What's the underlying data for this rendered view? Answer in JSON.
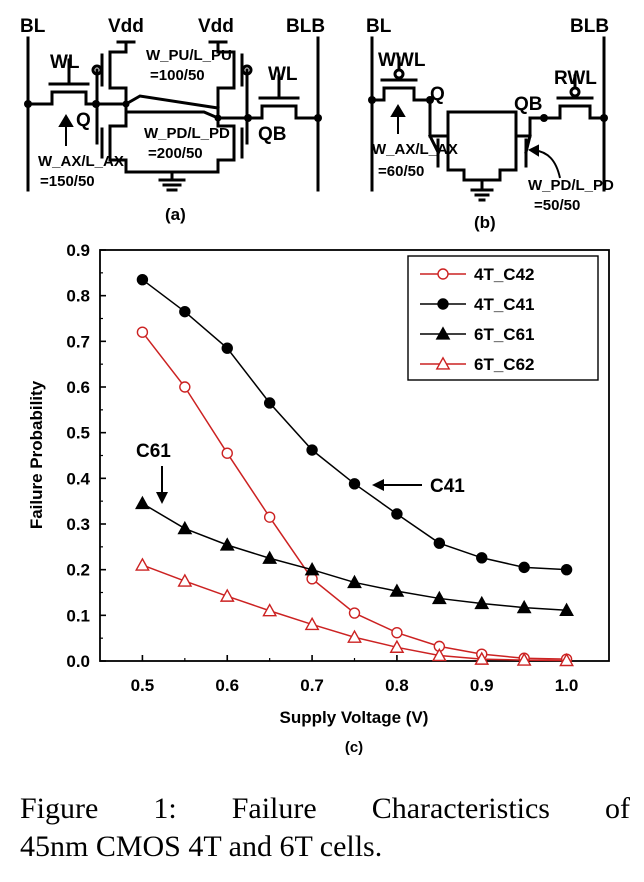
{
  "circuit_a": {
    "label": "(a)",
    "bl": "BL",
    "blb": "BLB",
    "wl_left": "WL",
    "wl_right": "WL",
    "vdd_left": "Vdd",
    "vdd_right": "Vdd",
    "q": "Q",
    "qb": "QB",
    "pu_ratio_name": "W_PU/L_PU",
    "pu_ratio_value": "=100/50",
    "pd_ratio_name": "W_PD/L_PD",
    "pd_ratio_value": "=200/50",
    "ax_ratio_name": "W_AX/L_AX",
    "ax_ratio_value": "=150/50"
  },
  "circuit_b": {
    "label": "(b)",
    "bl": "BL",
    "blb": "BLB",
    "wwl": "WWL",
    "rwl": "RWL",
    "q": "Q",
    "qb": "QB",
    "ax_ratio_name": "W_AX/L_AX",
    "ax_ratio_value": "=60/50",
    "pd_ratio_name": "W_PD/L_PD",
    "pd_ratio_value": "=50/50"
  },
  "chart_data": {
    "type": "line",
    "label": "(c)",
    "xlabel": "Supply Voltage (V)",
    "ylabel": "Failure Probability",
    "xlim": [
      0.45,
      1.05
    ],
    "ylim": [
      0.0,
      0.9
    ],
    "xticks": [
      0.5,
      0.6,
      0.7,
      0.8,
      0.9,
      1.0
    ],
    "yticks": [
      0.0,
      0.1,
      0.2,
      0.3,
      0.4,
      0.5,
      0.6,
      0.7,
      0.8,
      0.9
    ],
    "grid": false,
    "legend_position": "top-right",
    "x": [
      0.5,
      0.55,
      0.6,
      0.65,
      0.7,
      0.75,
      0.8,
      0.85,
      0.9,
      0.95,
      1.0
    ],
    "series": [
      {
        "name": "4T_C42",
        "color": "#cc2222",
        "marker": "open-circle",
        "values": [
          0.72,
          0.6,
          0.455,
          0.315,
          0.18,
          0.105,
          0.062,
          0.032,
          0.015,
          0.006,
          0.004
        ]
      },
      {
        "name": "4T_C41",
        "color": "#000000",
        "marker": "filled-circle",
        "values": [
          0.835,
          0.765,
          0.685,
          0.565,
          0.462,
          0.388,
          0.322,
          0.258,
          0.226,
          0.205,
          0.2
        ]
      },
      {
        "name": "6T_C61",
        "color": "#000000",
        "marker": "filled-triangle",
        "values": [
          0.345,
          0.29,
          0.254,
          0.225,
          0.2,
          0.172,
          0.153,
          0.137,
          0.126,
          0.117,
          0.111
        ]
      },
      {
        "name": "6T_C62",
        "color": "#cc2222",
        "marker": "open-triangle",
        "values": [
          0.21,
          0.175,
          0.142,
          0.11,
          0.08,
          0.052,
          0.03,
          0.012,
          0.004,
          0.002,
          0.001
        ]
      }
    ],
    "annotations": [
      {
        "text": "C61",
        "x": 0.52,
        "y": 0.37
      },
      {
        "text": "C41",
        "x": 0.82,
        "y": 0.38
      }
    ]
  },
  "caption": {
    "line1": "Figure 1:  Failure Characteristics of",
    "line2": "45nm CMOS 4T and 6T cells."
  }
}
